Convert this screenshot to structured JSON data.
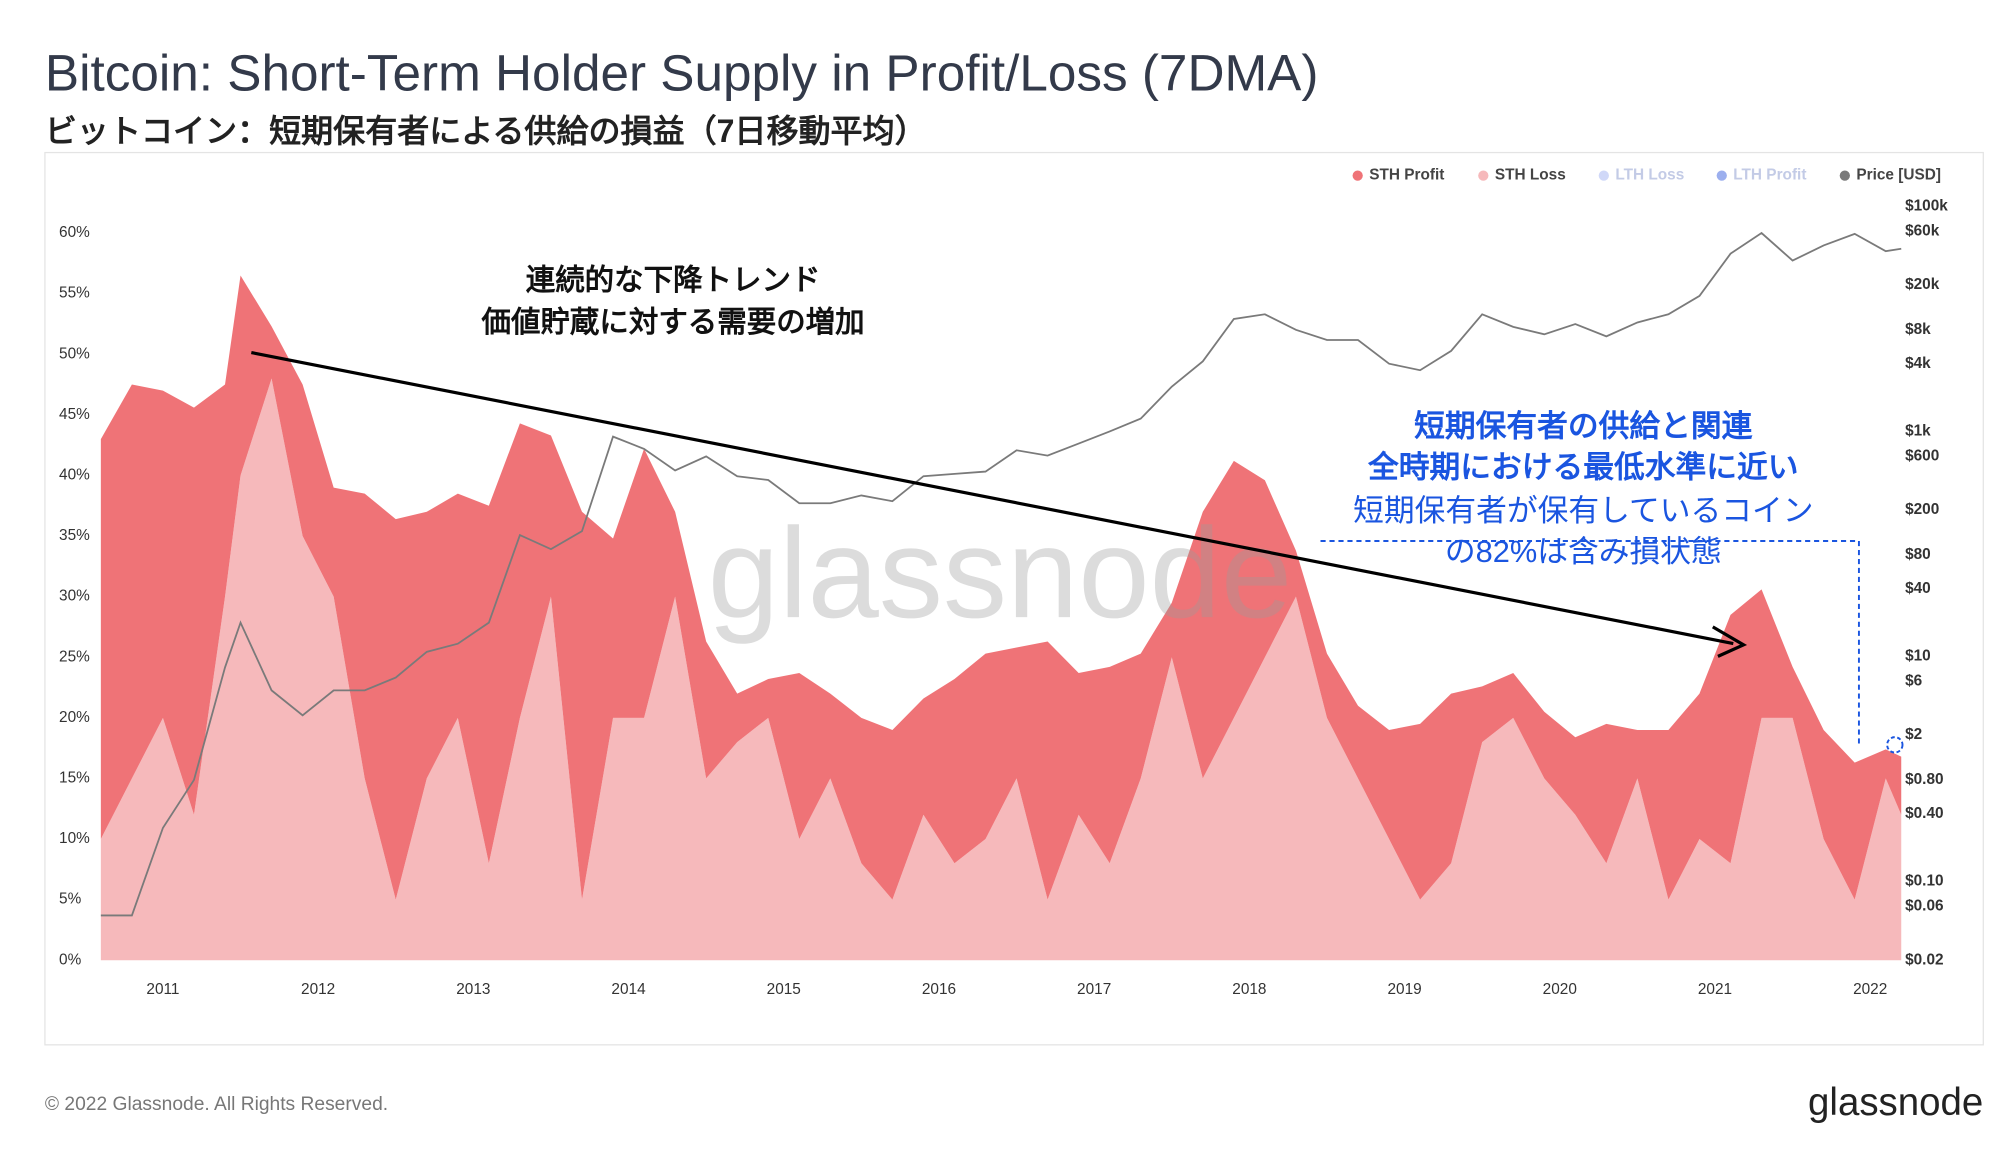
{
  "chart_data": {
    "type": "stacked_area",
    "title": "Bitcoin: Short-Term Holder Supply in Profit/Loss (7DMA)",
    "subtitle": "ビットコイン：短期保有者による供給の損益（7日移動平均）",
    "watermark": "glassnode",
    "footer": "© 2022 Glassnode. All Rights Reserved.",
    "logo": "glassnode",
    "annotations": {
      "trend": [
        "連続的な下降トレンド",
        "価値貯蔵に対する需要の増加"
      ],
      "note_bold": [
        "短期保有者の供給と関連",
        "全時期における最低水準に近い"
      ],
      "note": [
        "短期保有者が保有しているコイン",
        "の82%は含み損状態"
      ]
    },
    "x": [
      2010.6,
      2010.8,
      2011.0,
      2011.2,
      2011.4,
      2011.5,
      2011.7,
      2011.9,
      2012.1,
      2012.3,
      2012.5,
      2012.7,
      2012.9,
      2013.1,
      2013.3,
      2013.5,
      2013.7,
      2013.9,
      2014.1,
      2014.3,
      2014.5,
      2014.7,
      2014.9,
      2015.1,
      2015.3,
      2015.5,
      2015.7,
      2015.9,
      2016.1,
      2016.3,
      2016.5,
      2016.7,
      2016.9,
      2017.1,
      2017.3,
      2017.5,
      2017.7,
      2017.9,
      2018.1,
      2018.3,
      2018.5,
      2018.7,
      2018.9,
      2019.1,
      2019.3,
      2019.5,
      2019.7,
      2019.9,
      2020.1,
      2020.3,
      2020.5,
      2020.7,
      2020.9,
      2021.1,
      2021.3,
      2021.5,
      2021.7,
      2021.9,
      2022.1,
      2022.2
    ],
    "series": [
      {
        "name": "STH Profit",
        "color": "#ef7377",
        "values": [
          33,
          32.5,
          27,
          33.6,
          17.5,
          16.5,
          4.3,
          12.5,
          9,
          23.5,
          31.4,
          22,
          18.5,
          29.5,
          24.3,
          13.3,
          32,
          14.8,
          22.2,
          7,
          11.3,
          4,
          3.2,
          13.7,
          7,
          12,
          14,
          9.6,
          15.2,
          15.3,
          10.8,
          21.3,
          11.7,
          16.2,
          10.3,
          4.5,
          22,
          21.2,
          14.6,
          3.8,
          5.3,
          6,
          9,
          14.5,
          14,
          4.6,
          3.7,
          5.5,
          6.4,
          11.5,
          4,
          14,
          12,
          20.5,
          10.6,
          4.2,
          9,
          11.3,
          2.4,
          4.8
        ]
      },
      {
        "name": "STH Loss",
        "color": "#f6b9bb",
        "values": [
          10,
          15,
          20,
          12,
          30,
          40,
          48,
          35,
          30,
          15,
          5,
          15,
          20,
          8,
          20,
          30,
          5,
          20,
          20,
          30,
          15,
          18,
          20,
          10,
          15,
          8,
          5,
          12,
          8,
          10,
          15,
          5,
          12,
          8,
          15,
          25,
          15,
          20,
          25,
          30,
          20,
          15,
          10,
          5,
          8,
          18,
          20,
          15,
          12,
          8,
          15,
          5,
          10,
          8,
          20,
          20,
          10,
          5,
          15,
          12
        ]
      },
      {
        "name": "LTH Loss",
        "color": "#a9b8f2",
        "visible": false
      },
      {
        "name": "LTH Profit",
        "color": "#4a6ee0",
        "visible": false
      },
      {
        "name": "Price [USD]",
        "color": "#7a7a7a",
        "axis": "y2",
        "values": [
          0.05,
          0.05,
          0.3,
          0.8,
          8,
          20,
          5,
          3,
          5,
          5,
          6.5,
          11,
          13,
          20,
          120,
          90,
          130,
          900,
          700,
          450,
          600,
          400,
          370,
          230,
          230,
          270,
          240,
          400,
          420,
          440,
          680,
          610,
          780,
          1000,
          1300,
          2500,
          4200,
          10000,
          11000,
          8000,
          6500,
          6500,
          4000,
          3500,
          5200,
          11000,
          8500,
          7300,
          9000,
          7000,
          9300,
          11000,
          16000,
          38000,
          58000,
          33000,
          45000,
          57000,
          40000,
          42000
        ]
      }
    ],
    "xlim": [
      2010.57,
      2022.2
    ],
    "xticks": [
      2011,
      2012,
      2013,
      2014,
      2015,
      2016,
      2017,
      2018,
      2019,
      2020,
      2021,
      2022
    ],
    "ylim": [
      0,
      62.2
    ],
    "yticks": [
      {
        "value": 0,
        "label": "0%"
      },
      {
        "value": 5,
        "label": "5%"
      },
      {
        "value": 10,
        "label": "10%"
      },
      {
        "value": 15,
        "label": "15%"
      },
      {
        "value": 20,
        "label": "20%"
      },
      {
        "value": 25,
        "label": "25%"
      },
      {
        "value": 30,
        "label": "30%"
      },
      {
        "value": 35,
        "label": "35%"
      },
      {
        "value": 40,
        "label": "40%"
      },
      {
        "value": 45,
        "label": "45%"
      },
      {
        "value": 50,
        "label": "50%"
      },
      {
        "value": 55,
        "label": "55%"
      },
      {
        "value": 60,
        "label": "60%"
      }
    ],
    "y2lim": [
      0.02,
      100000
    ],
    "y2log": true,
    "y2ticks": [
      {
        "value": 100000,
        "label": "$100k"
      },
      {
        "value": 60000,
        "label": "$60k"
      },
      {
        "value": 20000,
        "label": "$20k"
      },
      {
        "value": 8000,
        "label": "$8k"
      },
      {
        "value": 4000,
        "label": "$4k"
      },
      {
        "value": 1000,
        "label": "$1k"
      },
      {
        "value": 600,
        "label": "$600"
      },
      {
        "value": 200,
        "label": "$200"
      },
      {
        "value": 80,
        "label": "$80"
      },
      {
        "value": 40,
        "label": "$40"
      },
      {
        "value": 10,
        "label": "$10"
      },
      {
        "value": 6,
        "label": "$6"
      },
      {
        "value": 2,
        "label": "$2"
      },
      {
        "value": 0.8,
        "label": "$0.80"
      },
      {
        "value": 0.4,
        "label": "$0.40"
      },
      {
        "value": 0.1,
        "label": "$0.10"
      },
      {
        "value": 0.06,
        "label": "$0.06"
      },
      {
        "value": 0.02,
        "label": "$0.02"
      }
    ],
    "legend": "top-right"
  }
}
